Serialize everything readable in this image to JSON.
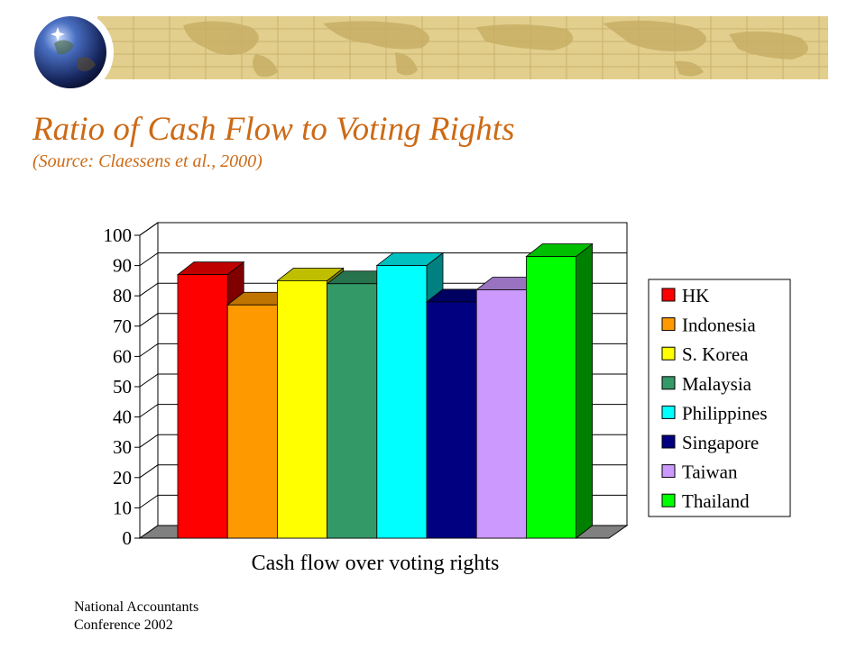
{
  "slide": {
    "title": "Ratio of Cash Flow to Voting Rights",
    "subtitle": "(Source: Claessens et al., 2000)",
    "footer_line1": "National Accountants",
    "footer_line2": "Conference 2002",
    "accent_color": "#cc6a16",
    "banner_color": "#e2cf8d"
  },
  "chart_data": {
    "type": "bar",
    "style": "3d",
    "title": "",
    "xlabel": "Cash flow over voting rights",
    "ylabel": "",
    "ylim": [
      0,
      100
    ],
    "yticks": [
      0,
      10,
      20,
      30,
      40,
      50,
      60,
      70,
      80,
      90,
      100
    ],
    "grid": true,
    "legend_position": "right",
    "series": [
      {
        "name": "HK",
        "value": 87,
        "color": "#ff0000"
      },
      {
        "name": "Indonesia",
        "value": 77,
        "color": "#ff9900"
      },
      {
        "name": "S. Korea",
        "value": 85,
        "color": "#ffff00"
      },
      {
        "name": "Malaysia",
        "value": 84,
        "color": "#339966"
      },
      {
        "name": "Philippines",
        "value": 90,
        "color": "#00ffff"
      },
      {
        "name": "Singapore",
        "value": 78,
        "color": "#000080"
      },
      {
        "name": "Taiwan",
        "value": 82,
        "color": "#cc99ff"
      },
      {
        "name": "Thailand",
        "value": 93,
        "color": "#00ff00"
      }
    ]
  }
}
